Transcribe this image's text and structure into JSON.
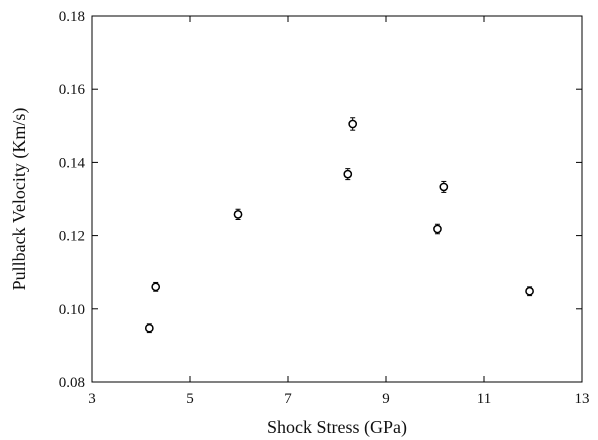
{
  "chart_data": {
    "type": "scatter",
    "title": "",
    "xlabel": "Shock Stress (GPa)",
    "ylabel": "Pullback Velocity (Km/s)",
    "xlim": [
      3,
      13
    ],
    "ylim": [
      0.08,
      0.18
    ],
    "x_ticks": [
      "3",
      "5",
      "7",
      "9",
      "11",
      "13"
    ],
    "y_ticks": [
      "0.08",
      "0.10",
      "0.12",
      "0.14",
      "0.16",
      "0.18"
    ],
    "grid": false,
    "legend": "none",
    "marker": "open circle with error bars",
    "color": "#000000",
    "series": [
      {
        "points": [
          {
            "x": 4.17,
            "y": 0.0947,
            "err": 0.0012
          },
          {
            "x": 4.3,
            "y": 0.106,
            "err": 0.0012
          },
          {
            "x": 5.98,
            "y": 0.1258,
            "err": 0.0014
          },
          {
            "x": 8.22,
            "y": 0.1368,
            "err": 0.0015
          },
          {
            "x": 8.32,
            "y": 0.1505,
            "err": 0.0017
          },
          {
            "x": 10.05,
            "y": 0.1218,
            "err": 0.0013
          },
          {
            "x": 10.18,
            "y": 0.1333,
            "err": 0.0015
          },
          {
            "x": 11.93,
            "y": 0.1048,
            "err": 0.0012
          }
        ]
      }
    ]
  }
}
